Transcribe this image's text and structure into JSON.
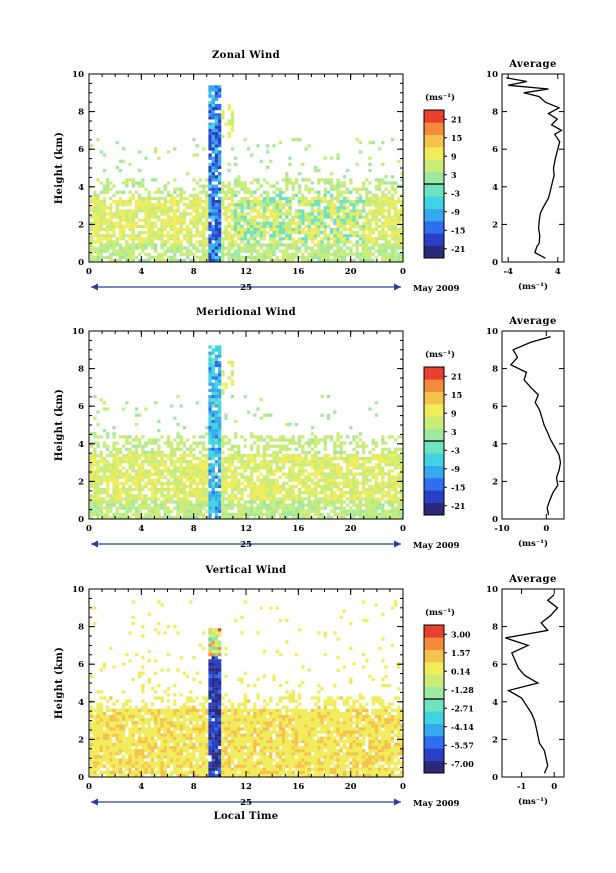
{
  "chart_data": [
    {
      "type": "heatmap",
      "title": "Zonal Wind",
      "xlabel": "",
      "ylabel": "Height (km)",
      "xticks": [
        "0",
        "4",
        "8",
        "12",
        "16",
        "20",
        "0"
      ],
      "xlim": [
        0,
        24
      ],
      "yticks": [
        "0",
        "2",
        "4",
        "6",
        "8",
        "10"
      ],
      "ylim": [
        0,
        10
      ],
      "date_day": "25",
      "date_month": "May 2009",
      "colorbar": {
        "unit": "(ms⁻¹)",
        "ticks": [
          "21",
          "15",
          "9",
          "3",
          "-3",
          "-9",
          "-15",
          "-21"
        ],
        "range": [
          -24,
          24
        ],
        "colors": [
          "#2b2a7a",
          "#2b3fc4",
          "#2f6ef0",
          "#35a8ee",
          "#3fd3e4",
          "#6fe2c0",
          "#9ee8a0",
          "#c9ec78",
          "#f0ec5a",
          "#f5c24a",
          "#f58a3a",
          "#e8402e"
        ]
      },
      "data_summary": "Weak easterly/westerly winds (about -3 to 9 m/s) below 4.5 km throughout the day, strong negative anomaly column near 09-10 LT up to 9.5 km",
      "average_profile": {
        "title": "Average",
        "xlabel": "(ms⁻¹)",
        "xticks": [
          "-4",
          "4"
        ],
        "xlim": [
          -5,
          5
        ],
        "yticks": [
          "0",
          "2",
          "4",
          "6",
          "8",
          "10"
        ],
        "heights": [
          0.2,
          0.5,
          0.8,
          1.0,
          1.4,
          1.8,
          2.2,
          2.6,
          3.0,
          3.4,
          3.8,
          4.2,
          4.6,
          5.0,
          5.5,
          6.0,
          6.4,
          6.8,
          7.0,
          7.3,
          7.6,
          7.9,
          8.2,
          8.5,
          8.8,
          9.0,
          9.2,
          9.4,
          9.6,
          9.8
        ],
        "values": [
          2.0,
          0.3,
          0.6,
          1.0,
          1.1,
          0.9,
          1.0,
          1.2,
          1.8,
          2.5,
          2.8,
          3.1,
          3.4,
          3.3,
          3.6,
          4.0,
          4.3,
          3.5,
          4.6,
          3.0,
          3.9,
          2.5,
          4.2,
          2.0,
          1.0,
          -1.5,
          2.5,
          -4.0,
          -1.0,
          -4.3
        ]
      }
    },
    {
      "type": "heatmap",
      "title": "Meridional Wind",
      "xlabel": "",
      "ylabel": "Height (km)",
      "xticks": [
        "0",
        "4",
        "8",
        "12",
        "16",
        "20",
        "0"
      ],
      "xlim": [
        0,
        24
      ],
      "yticks": [
        "0",
        "2",
        "4",
        "6",
        "8",
        "10"
      ],
      "ylim": [
        0,
        10
      ],
      "date_day": "25",
      "date_month": "May 2009",
      "colorbar": {
        "unit": "(ms⁻¹)",
        "ticks": [
          "21",
          "15",
          "9",
          "3",
          "-3",
          "-9",
          "-15",
          "-21"
        ],
        "range": [
          -24,
          24
        ],
        "colors": [
          "#2b2a7a",
          "#2b3fc4",
          "#2f6ef0",
          "#35a8ee",
          "#3fd3e4",
          "#6fe2c0",
          "#9ee8a0",
          "#c9ec78",
          "#f0ec5a",
          "#f5c24a",
          "#f58a3a",
          "#e8402e"
        ]
      },
      "data_summary": "Weak meridional winds (about -3 to 9 m/s) below 4 km, narrow column of stronger values near 09-10 LT",
      "average_profile": {
        "title": "Average",
        "xlabel": "(ms⁻¹)",
        "xticks": [
          "-10",
          "0"
        ],
        "xlim": [
          -10,
          4
        ],
        "yticks": [
          "0",
          "2",
          "4",
          "6",
          "8",
          "10"
        ],
        "heights": [
          0.2,
          0.6,
          1.0,
          1.4,
          1.8,
          2.2,
          2.6,
          3.0,
          3.4,
          3.8,
          4.2,
          4.6,
          5.0,
          5.4,
          5.8,
          6.2,
          6.6,
          7.0,
          7.4,
          7.8,
          8.2,
          8.6,
          9.0,
          9.4,
          9.7
        ],
        "values": [
          0.5,
          0.2,
          0.8,
          1.5,
          2.6,
          2.3,
          2.9,
          3.2,
          2.9,
          2.0,
          1.0,
          0.3,
          -0.5,
          -1.0,
          -1.5,
          -2.5,
          -1.8,
          -3.5,
          -5.0,
          -4.5,
          -8.0,
          -6.5,
          -7.5,
          -3.5,
          1.0
        ]
      }
    },
    {
      "type": "heatmap",
      "title": "Vertical Wind",
      "xlabel": "Local Time",
      "ylabel": "Height (km)",
      "xticks": [
        "0",
        "4",
        "8",
        "12",
        "16",
        "20",
        "0"
      ],
      "xlim": [
        0,
        24
      ],
      "yticks": [
        "0",
        "2",
        "4",
        "6",
        "8",
        "10"
      ],
      "ylim": [
        0,
        10
      ],
      "date_day": "25",
      "date_month": "May 2009",
      "colorbar": {
        "unit": "(ms⁻¹)",
        "ticks": [
          "3.00",
          "1.57",
          "0.14",
          "-1.28",
          "-2.71",
          "-4.14",
          "-5.57",
          "-7.00"
        ],
        "range": [
          -7.7,
          3.7
        ],
        "colors": [
          "#2b2a7a",
          "#2b3fc4",
          "#2f6ef0",
          "#35a8ee",
          "#3fd3e4",
          "#6fe2c0",
          "#9ee8a0",
          "#c9ec78",
          "#f0ec5a",
          "#f5c24a",
          "#f58a3a",
          "#e8402e"
        ]
      },
      "data_summary": "Near-zero vertical wind (about 0 m/s) below 4 km, strong downdraft column (about -6 to -7 m/s) near 09-10 LT",
      "average_profile": {
        "title": "Average",
        "xlabel": "(ms⁻¹)",
        "xticks": [
          "-1",
          "0"
        ],
        "xlim": [
          -1.6,
          0.3
        ],
        "yticks": [
          "0",
          "2",
          "4",
          "6",
          "8",
          "10"
        ],
        "heights": [
          0.2,
          0.6,
          1.0,
          1.4,
          1.8,
          2.2,
          2.6,
          3.0,
          3.4,
          3.8,
          4.2,
          4.6,
          5.0,
          5.4,
          5.8,
          6.2,
          6.6,
          7.0,
          7.4,
          7.8,
          8.2,
          8.6,
          9.0,
          9.4,
          9.7
        ],
        "values": [
          -0.3,
          -0.2,
          -0.25,
          -0.3,
          -0.45,
          -0.5,
          -0.55,
          -0.6,
          -0.7,
          -0.85,
          -1.0,
          -1.4,
          -0.5,
          -0.9,
          -1.1,
          -1.2,
          -1.3,
          -0.8,
          -1.5,
          -0.2,
          -0.4,
          -0.1,
          0.1,
          -0.2,
          0.0
        ]
      }
    }
  ]
}
